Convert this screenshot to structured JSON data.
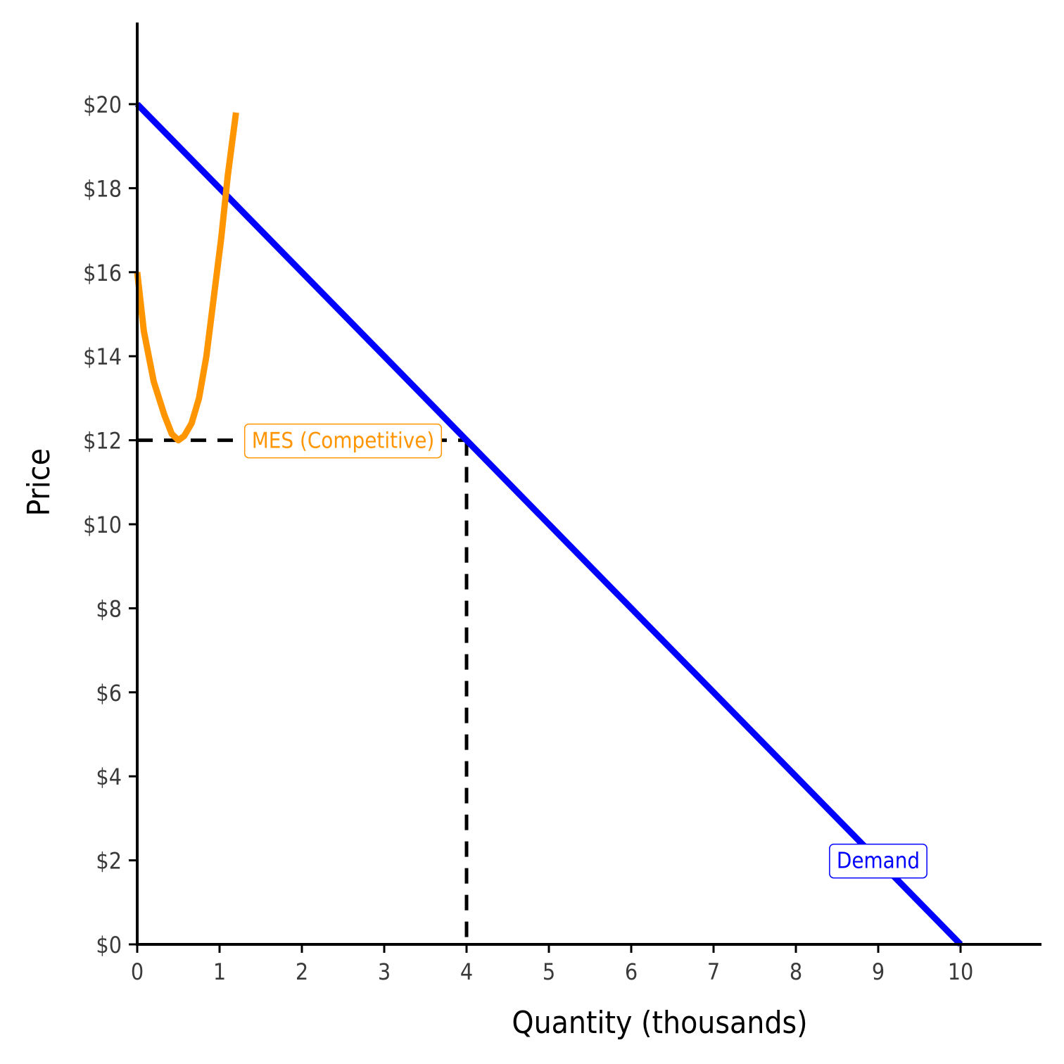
{
  "chart_data": {
    "type": "line",
    "xlabel": "Quantity (thousands)",
    "ylabel": "Price",
    "xlim": [
      0,
      11
    ],
    "ylim": [
      0,
      22
    ],
    "x_ticks": [
      0,
      1,
      2,
      3,
      4,
      5,
      6,
      7,
      8,
      9,
      10
    ],
    "x_tick_labels": [
      "0",
      "1",
      "2",
      "3",
      "4",
      "5",
      "6",
      "7",
      "8",
      "9",
      "10"
    ],
    "y_ticks": [
      0,
      2,
      4,
      6,
      8,
      10,
      12,
      14,
      16,
      18,
      20
    ],
    "y_tick_labels": [
      "$0",
      "$2",
      "$4",
      "$6",
      "$8",
      "$10",
      "$12",
      "$14",
      "$16",
      "$18",
      "$20"
    ],
    "grid": false,
    "legend": "none",
    "series": [
      {
        "key": "demand",
        "color": "#0000ff",
        "points": [
          [
            0,
            20
          ],
          [
            10,
            0
          ]
        ]
      },
      {
        "key": "atc",
        "color": "#ff9500",
        "points": [
          [
            0,
            16
          ],
          [
            0.08,
            14.6
          ],
          [
            0.2,
            13.4
          ],
          [
            0.33,
            12.6
          ],
          [
            0.42,
            12.15
          ],
          [
            0.5,
            12.0
          ],
          [
            0.57,
            12.1
          ],
          [
            0.66,
            12.4
          ],
          [
            0.75,
            13.0
          ],
          [
            0.84,
            14.0
          ],
          [
            0.93,
            15.4
          ],
          [
            1.02,
            16.8
          ],
          [
            1.1,
            18.3
          ],
          [
            1.2,
            19.8
          ]
        ]
      }
    ],
    "reference_lines": [
      {
        "from": [
          0,
          12
        ],
        "to": [
          4,
          12
        ],
        "style": "dashed",
        "color": "#000000"
      },
      {
        "from": [
          4,
          12
        ],
        "to": [
          4,
          0
        ],
        "style": "dashed",
        "color": "#000000"
      }
    ],
    "annotations": [
      {
        "key": "mes",
        "text": "MES (Competitive)",
        "x": 2.5,
        "y": 12,
        "color": "#ff9500"
      },
      {
        "key": "demand",
        "text": "Demand",
        "x": 9,
        "y": 2,
        "color": "#0000ff"
      }
    ]
  }
}
